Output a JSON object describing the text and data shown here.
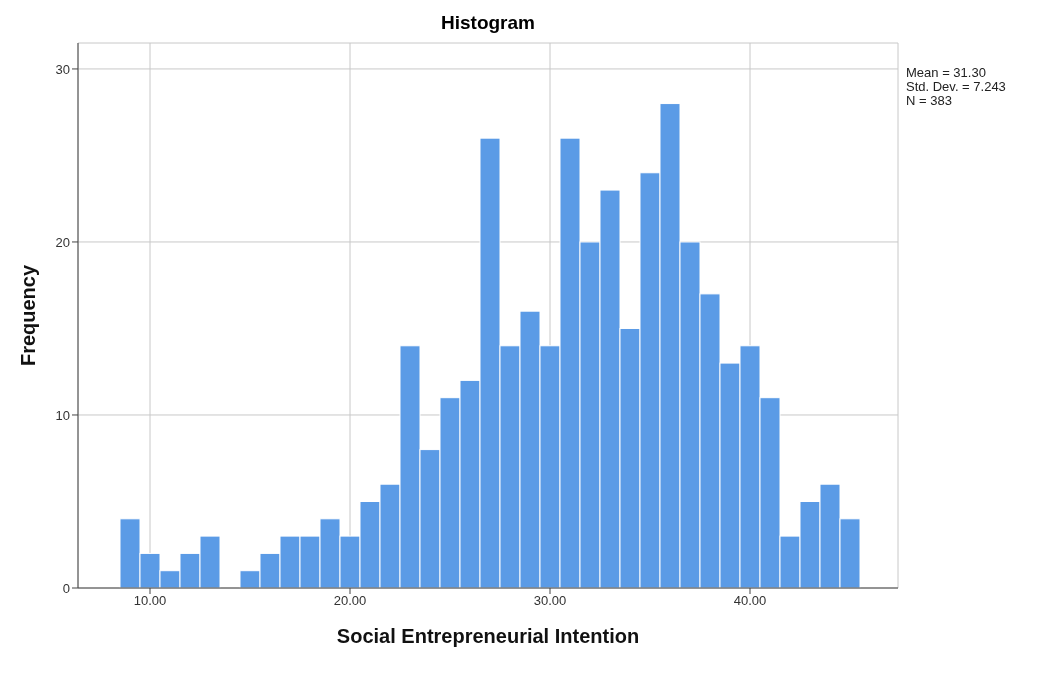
{
  "chart_data": {
    "type": "histogram",
    "title": "Histogram",
    "xlabel": "Social Entrepreneurial Intention",
    "ylabel": "Frequency",
    "bins": [
      8.5,
      9.5,
      10.5,
      11.5,
      12.5,
      13.5,
      14.5,
      15.5,
      16.5,
      17.5,
      18.5,
      19.5,
      20.5,
      21.5,
      22.5,
      23.5,
      24.5,
      25.5,
      26.5,
      27.5,
      28.5,
      29.5,
      30.5,
      31.5,
      32.5,
      33.5,
      34.5,
      35.5,
      36.5,
      37.5,
      38.5,
      39.5,
      40.5,
      41.5,
      42.5,
      43.5,
      44.5,
      45.5
    ],
    "values": [
      4,
      2,
      1,
      2,
      3,
      0,
      1,
      2,
      3,
      3,
      4,
      3,
      5,
      6,
      14,
      8,
      11,
      12,
      26,
      14,
      16,
      14,
      26,
      20,
      23,
      15,
      24,
      28,
      20,
      17,
      13,
      14,
      11,
      3,
      5,
      6,
      4
    ],
    "color": "#5b9be6",
    "xlim": [
      6.4,
      47.4
    ],
    "xticks": [
      {
        "value": 10,
        "label": "10.00"
      },
      {
        "value": 20,
        "label": "20.00"
      },
      {
        "value": 30,
        "label": "30.00"
      },
      {
        "value": 40,
        "label": "40.00"
      }
    ],
    "ylim": [
      0,
      31.5
    ],
    "yticks": [
      0,
      10,
      20,
      30
    ],
    "grid": true,
    "annotations": [
      "Mean = 31.30",
      "Std. Dev. = 7.243",
      "N = 383"
    ]
  }
}
